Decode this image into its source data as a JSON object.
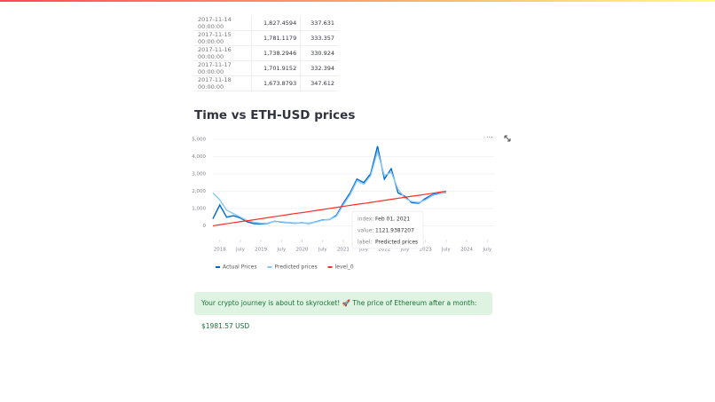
{
  "table": {
    "rows": [
      [
        "2017-11-14 00:00:00",
        "1,827.4594",
        "337.631"
      ],
      [
        "2017-11-15 00:00:00",
        "1,781.1179",
        "333.357"
      ],
      [
        "2017-11-16 00:00:00",
        "1,738.2946",
        "330.924"
      ],
      [
        "2017-11-17 00:00:00",
        "1,701.9152",
        "332.394"
      ],
      [
        "2017-11-18 00:00:00",
        "1,673.8793",
        "347.612"
      ]
    ]
  },
  "heading": "Time vs ETH-USD prices",
  "chart_data": {
    "type": "line",
    "x": [
      "2017-11",
      "2018-01",
      "2018-03",
      "2018-05",
      "2018-07",
      "2018-09",
      "2018-11",
      "2019-01",
      "2019-03",
      "2019-05",
      "2019-07",
      "2019-09",
      "2019-11",
      "2020-01",
      "2020-03",
      "2020-05",
      "2020-07",
      "2020-09",
      "2020-11",
      "2021-01",
      "2021-03",
      "2021-05",
      "2021-07",
      "2021-09",
      "2021-11",
      "2022-01",
      "2022-03",
      "2022-05",
      "2022-07",
      "2022-09",
      "2022-11",
      "2023-01",
      "2023-03",
      "2023-05",
      "2023-07"
    ],
    "series": [
      {
        "name": "Actual Prices",
        "color": "#0068c9",
        "values": [
          400,
          1200,
          500,
          580,
          450,
          230,
          120,
          110,
          140,
          260,
          210,
          180,
          150,
          180,
          130,
          230,
          340,
          360,
          600,
          1300,
          1900,
          2700,
          2500,
          3000,
          4600,
          2700,
          3300,
          1900,
          1700,
          1330,
          1300,
          1580,
          1800,
          1870,
          1930
        ]
      },
      {
        "name": "Predicted prices",
        "color": "#83c9ff",
        "values": [
          1900,
          1500,
          900,
          700,
          500,
          300,
          200,
          150,
          160,
          250,
          230,
          190,
          160,
          170,
          150,
          220,
          320,
          370,
          550,
          1200,
          1800,
          2600,
          2400,
          2900,
          4300,
          2900,
          3100,
          2100,
          1600,
          1400,
          1350,
          1500,
          1750,
          1850,
          1950
        ]
      },
      {
        "name": "level_0",
        "color": "#ff2b2b",
        "values": [
          0,
          60,
          120,
          180,
          240,
          290,
          350,
          410,
          470,
          530,
          590,
          650,
          710,
          760,
          820,
          880,
          940,
          1000,
          1060,
          1120,
          1180,
          1240,
          1290,
          1350,
          1410,
          1470,
          1530,
          1590,
          1650,
          1710,
          1760,
          1820,
          1880,
          1940,
          2000
        ]
      }
    ],
    "xlim": [
      "2017-11",
      "2024-09"
    ],
    "xticks": [
      {
        "value": "2018-01",
        "label": "2018"
      },
      {
        "value": "2018-07",
        "label": "July"
      },
      {
        "value": "2019-01",
        "label": "2019"
      },
      {
        "value": "2019-07",
        "label": "July"
      },
      {
        "value": "2020-01",
        "label": "2020"
      },
      {
        "value": "2020-07",
        "label": "July"
      },
      {
        "value": "2021-01",
        "label": "2021"
      },
      {
        "value": "2021-07",
        "label": "July"
      },
      {
        "value": "2022-01",
        "label": "2022"
      },
      {
        "value": "2022-07",
        "label": "July"
      },
      {
        "value": "2023-01",
        "label": "2023"
      },
      {
        "value": "2023-07",
        "label": "July"
      },
      {
        "value": "2024-01",
        "label": "2024"
      },
      {
        "value": "2024-07",
        "label": "July"
      }
    ],
    "ylim": [
      -800,
      5000
    ],
    "yticks": [
      0,
      {
        "value": 1000,
        "label": "1,000"
      },
      {
        "value": 2000,
        "label": "2,000"
      },
      {
        "value": 3000,
        "label": "3,000"
      },
      {
        "value": 4000,
        "label": "4,000"
      },
      {
        "value": 5000,
        "label": "5,000"
      }
    ],
    "grid": true,
    "tooltip": {
      "rows": [
        [
          "index:",
          "Feb 01, 2021"
        ],
        [
          "value:",
          "1121.9387207"
        ],
        [
          "label:",
          "Predicted prices"
        ]
      ]
    }
  },
  "message": "Your crypto journey is about to skyrocket! 🚀 The price of Ethereum after a month: $1981.57 USD"
}
